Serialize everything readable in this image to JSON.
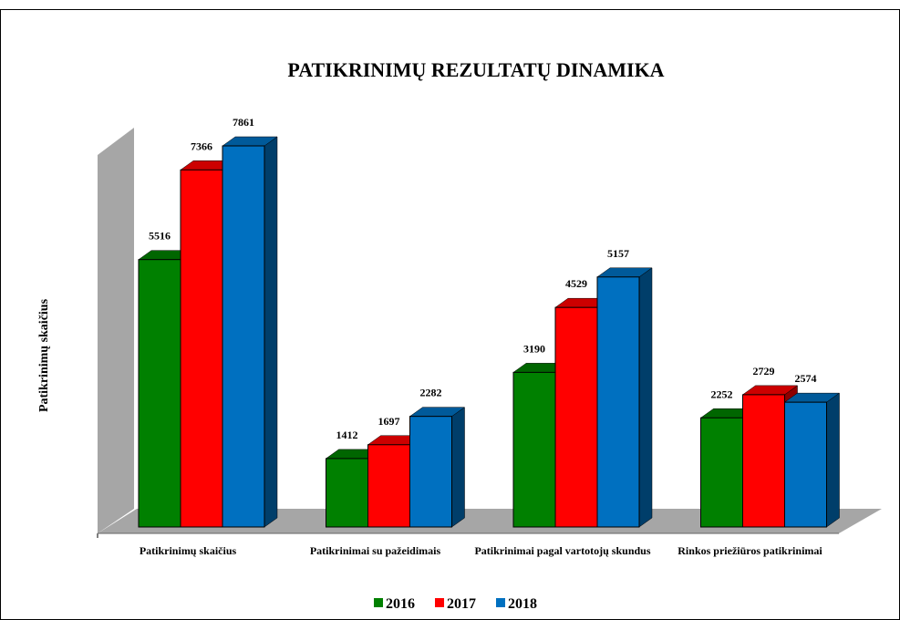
{
  "chart_data": {
    "type": "bar3d",
    "title": "PATIKRINIMŲ REZULTATŲ DINAMIKA",
    "y_label": "Patikrinimų skaičius",
    "categories": [
      "Patikrinimų skaičius",
      "Patikrinimai su pažeidimais",
      "Patikrinimai pagal vartotojų skundus",
      "Rinkos priežiūros patikrinimai"
    ],
    "series": [
      {
        "name": "2016",
        "color": "#008000",
        "values": [
          5516,
          1412,
          3190,
          2252
        ]
      },
      {
        "name": "2017",
        "color": "#ff0000",
        "values": [
          7366,
          1697,
          4529,
          2729
        ]
      },
      {
        "name": "2018",
        "color": "#0070c0",
        "values": [
          7861,
          2282,
          5157,
          2574
        ]
      }
    ],
    "legend": "bottom"
  }
}
